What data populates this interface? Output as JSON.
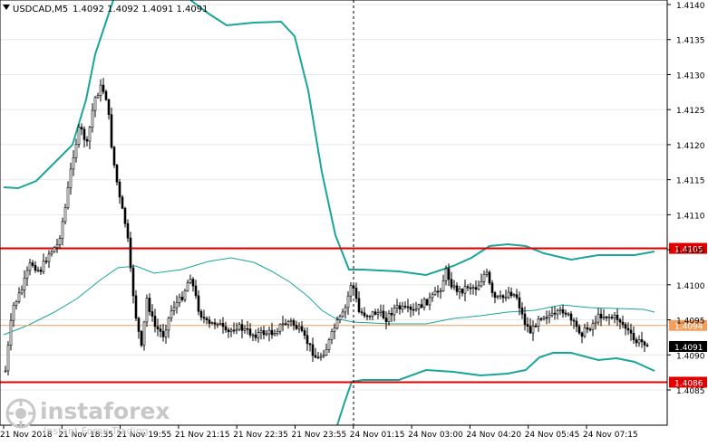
{
  "header": {
    "symbol": "USDCAD,M5",
    "ohlc": "1.4092 1.4092 1.4091 1.4091"
  },
  "watermark": {
    "brand": "instaforex",
    "tagline": "Instant Forex Trading"
  },
  "chart_data": {
    "type": "candlestick",
    "ylim": [
      1.40835,
      1.4141
    ],
    "y_ticks": [
      "1.4140",
      "1.4135",
      "1.4130",
      "1.4125",
      "1.4120",
      "1.4115",
      "1.4110",
      "1.4105",
      "1.4100",
      "1.4095",
      "1.4090",
      "1.4085"
    ],
    "x_ticks": [
      "21 Nov 2018",
      "21 Nov 18:35",
      "21 Nov 19:55",
      "21 Nov 21:15",
      "21 Nov 22:35",
      "21 Nov 23:55",
      "24 Nov 01:15",
      "24 Nov 03:00",
      "24 Nov 04:20",
      "24 Nov 05:45",
      "24 Nov 07:15"
    ],
    "levels": [
      {
        "label": "1.4105",
        "value": 1.41052,
        "color": "#e00000"
      },
      {
        "label": "1.4094",
        "value": 1.40942,
        "color": "#f0a060"
      },
      {
        "label": "1.4086",
        "value": 1.40861,
        "color": "#e00000"
      },
      {
        "label": "1.4091",
        "value": 1.40912,
        "color": "#000000"
      }
    ],
    "colors": {
      "bull": "#ffffff",
      "bear": "#000000",
      "upper_band": "#1aa59a",
      "middle_band": "#1aa59a",
      "lower_band": "#1aa59a"
    }
  }
}
